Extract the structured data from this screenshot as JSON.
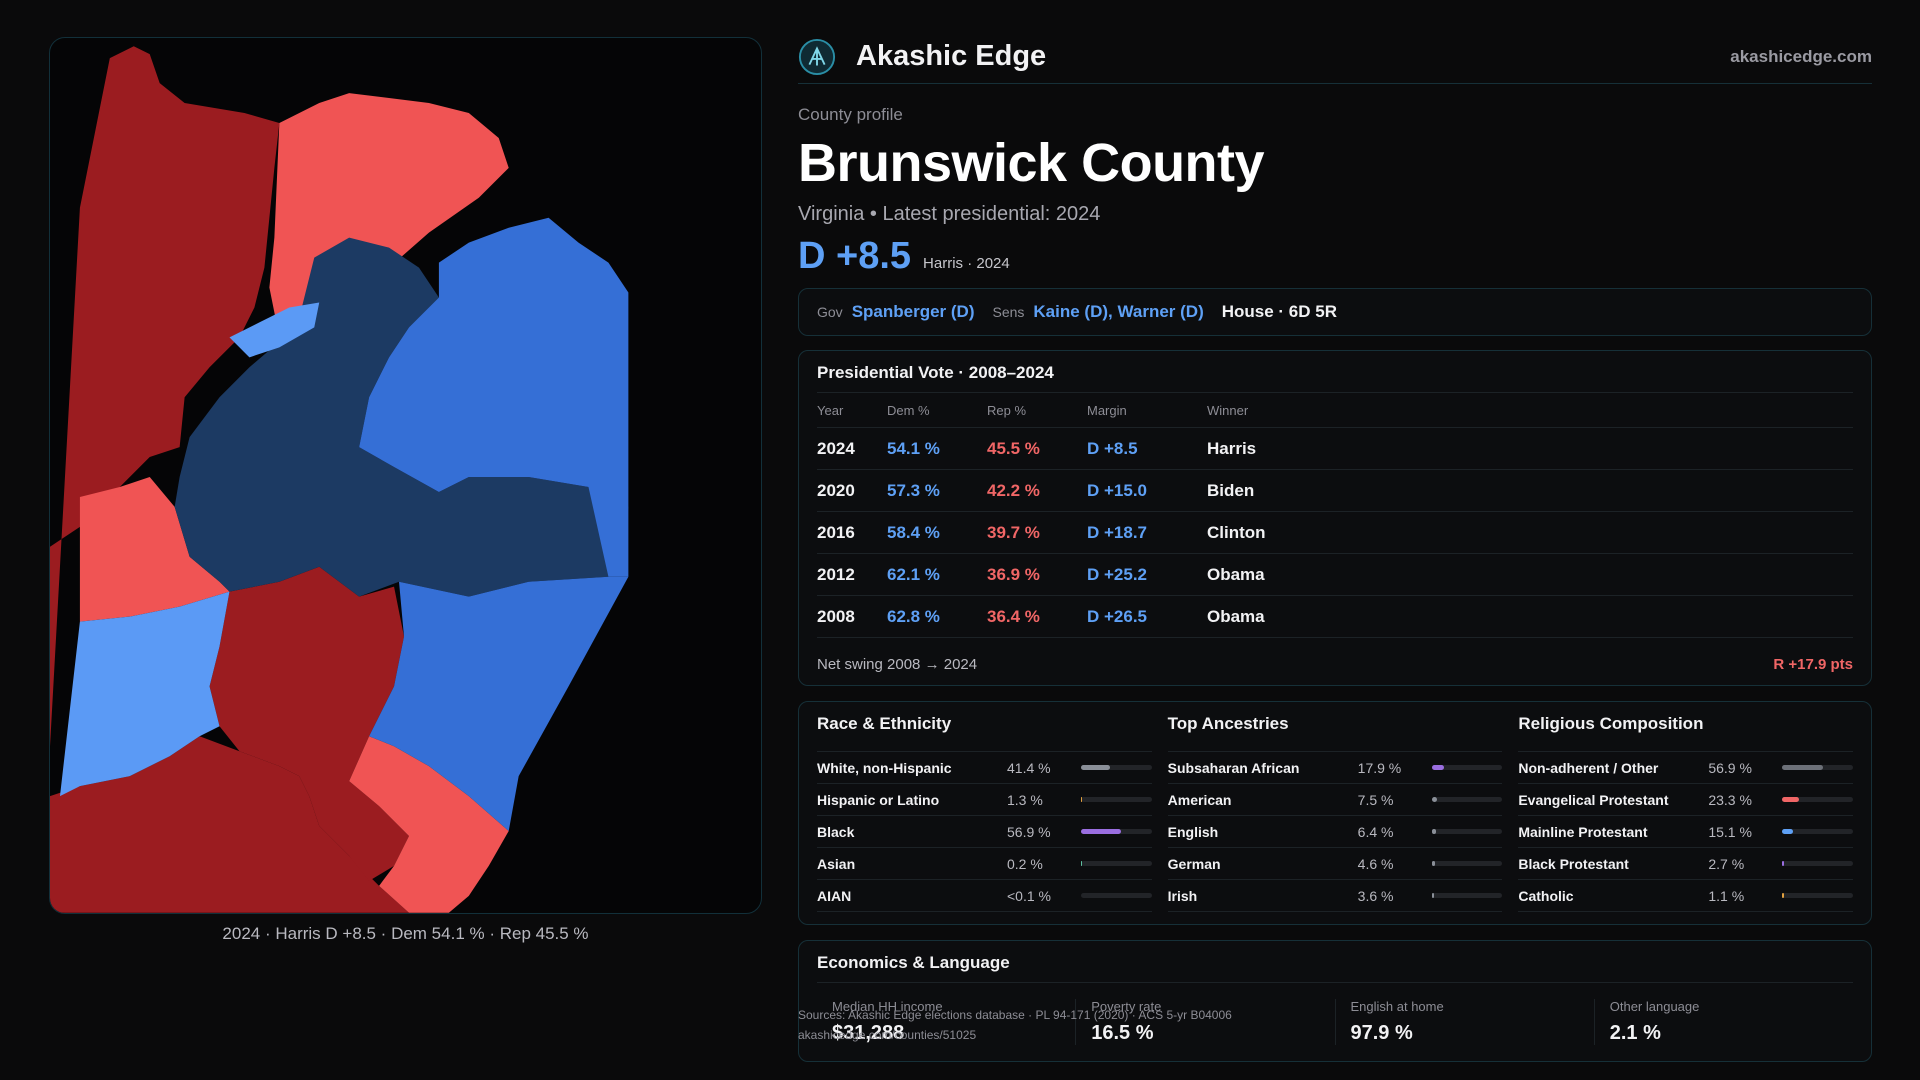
{
  "map": {
    "caption": "2024 · Harris D +8.5 · Dem 54.1 % · Rep 45.5 %",
    "colors": {
      "safe_rep": "#9b1c20",
      "lean_rep": "#f05454",
      "safe_dem": "#1c3a63",
      "likely_dem": "#356fd6",
      "lean_dem": "#5b9af5"
    }
  },
  "brand": {
    "name": "Akashic Edge",
    "url": "akashicedge.com",
    "logo_icon": "akashic-edge-logo"
  },
  "profile": {
    "kicker": "County profile",
    "title": "Brunswick County",
    "subtitle": "Virginia • Latest presidential: 2024",
    "margin": "D +8.5",
    "margin_sub": "Harris · 2024"
  },
  "officials": {
    "gov_label": "Gov",
    "gov": "Spanberger (D)",
    "sens_label": "Sens",
    "sens": "Kaine (D), Warner (D)",
    "house": "House · 6D 5R"
  },
  "presidential": {
    "title": "Presidential Vote · 2008–2024",
    "headers": [
      "Year",
      "Dem %",
      "Rep %",
      "Margin",
      "Winner"
    ],
    "rows": [
      {
        "year": "2024",
        "dem": "54.1 %",
        "rep": "45.5 %",
        "margin": "D +8.5",
        "winner": "Harris"
      },
      {
        "year": "2020",
        "dem": "57.3 %",
        "rep": "42.2 %",
        "margin": "D +15.0",
        "winner": "Biden"
      },
      {
        "year": "2016",
        "dem": "58.4 %",
        "rep": "39.7 %",
        "margin": "D +18.7",
        "winner": "Clinton"
      },
      {
        "year": "2012",
        "dem": "62.1 %",
        "rep": "36.9 %",
        "margin": "D +25.2",
        "winner": "Obama"
      },
      {
        "year": "2008",
        "dem": "62.8 %",
        "rep": "36.4 %",
        "margin": "D +26.5",
        "winner": "Obama"
      }
    ],
    "swing_label": "Net swing 2008 → 2024",
    "swing_value": "R +17.9 pts"
  },
  "demographics": [
    {
      "title": "Race & Ethnicity",
      "rows": [
        {
          "label": "White, non-Hispanic",
          "value": "41.4 %",
          "fraction": 0.414,
          "color": "#8a8f98"
        },
        {
          "label": "Hispanic or Latino",
          "value": "1.3 %",
          "fraction": 0.013,
          "color": "#e0a040"
        },
        {
          "label": "Black",
          "value": "56.9 %",
          "fraction": 0.569,
          "color": "#9a6ee0"
        },
        {
          "label": "Asian",
          "value": "0.2 %",
          "fraction": 0.002,
          "color": "#5ec0a0"
        },
        {
          "label": "AIAN",
          "value": "<0.1 %",
          "fraction": 0.0,
          "color": "#5ec0a0"
        }
      ]
    },
    {
      "title": "Top Ancestries",
      "rows": [
        {
          "label": "Subsaharan African",
          "value": "17.9 %",
          "fraction": 0.179,
          "color": "#9a6ee0"
        },
        {
          "label": "American",
          "value": "7.5 %",
          "fraction": 0.075,
          "color": "#8a8f98"
        },
        {
          "label": "English",
          "value": "6.4 %",
          "fraction": 0.064,
          "color": "#8a8f98"
        },
        {
          "label": "German",
          "value": "4.6 %",
          "fraction": 0.046,
          "color": "#8a8f98"
        },
        {
          "label": "Irish",
          "value": "3.6 %",
          "fraction": 0.036,
          "color": "#8a8f98"
        }
      ]
    },
    {
      "title": "Religious Composition",
      "rows": [
        {
          "label": "Non-adherent / Other",
          "value": "56.9 %",
          "fraction": 0.569,
          "color": "#6c7078"
        },
        {
          "label": "Evangelical Protestant",
          "value": "23.3 %",
          "fraction": 0.233,
          "color": "#f06666"
        },
        {
          "label": "Mainline Protestant",
          "value": "15.1 %",
          "fraction": 0.151,
          "color": "#5ea0f5"
        },
        {
          "label": "Black Protestant",
          "value": "2.7 %",
          "fraction": 0.027,
          "color": "#9a6ee0"
        },
        {
          "label": "Catholic",
          "value": "1.1 %",
          "fraction": 0.011,
          "color": "#e0a040"
        }
      ]
    }
  ],
  "economics": {
    "title": "Economics & Language",
    "cells": [
      {
        "label": "Median HH income",
        "value": "$31,288"
      },
      {
        "label": "Poverty rate",
        "value": "16.5 %"
      },
      {
        "label": "English at home",
        "value": "97.9 %"
      },
      {
        "label": "Other language",
        "value": "2.1 %"
      }
    ]
  },
  "sources": {
    "line1": "Sources: Akashic Edge elections database · PL 94-171 (2020) · ACS 5-yr B04006",
    "line2": "akashicedge.com/counties/51025"
  }
}
